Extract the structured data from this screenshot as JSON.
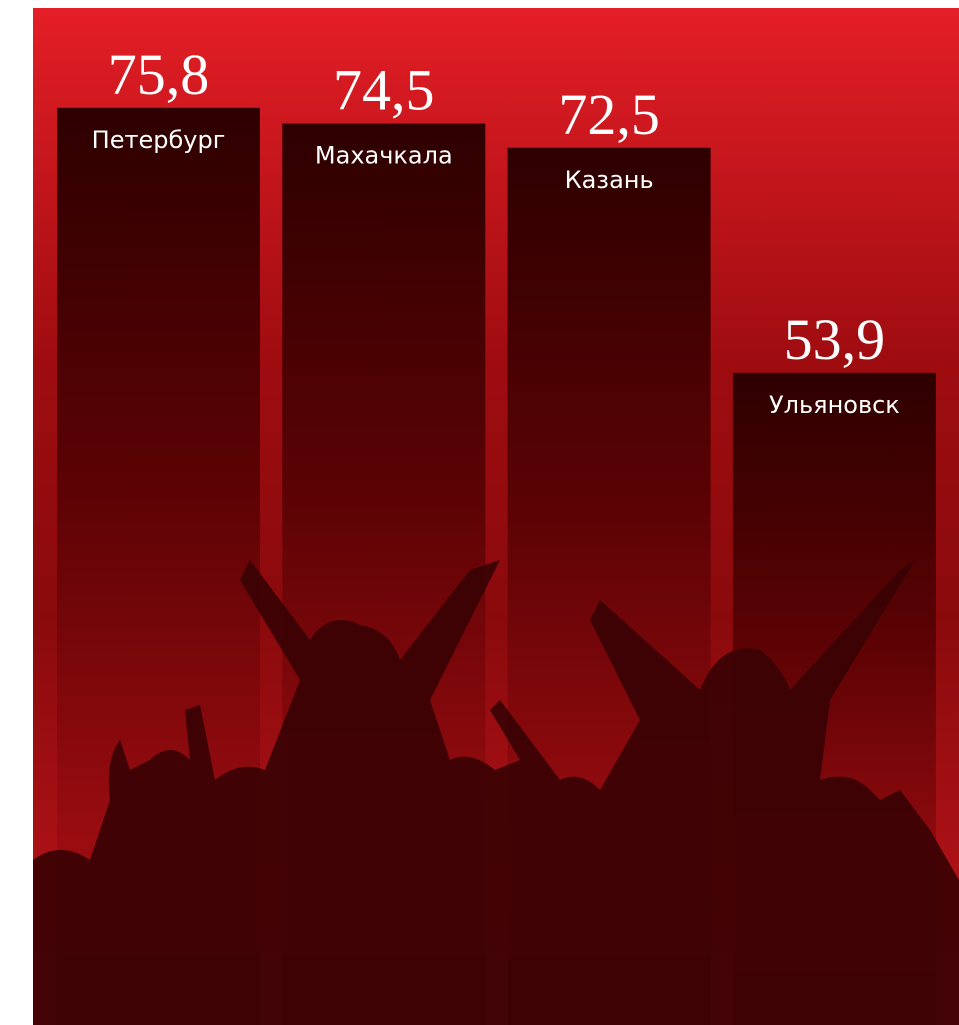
{
  "chart_data": {
    "type": "bar",
    "categories": [
      "Петербург",
      "Махачкала",
      "Казань",
      "Ульяновск"
    ],
    "values": [
      75.8,
      74.5,
      72.5,
      53.9
    ],
    "value_labels": [
      "75,8",
      "74,5",
      "72,5",
      "53,9"
    ]
  }
}
